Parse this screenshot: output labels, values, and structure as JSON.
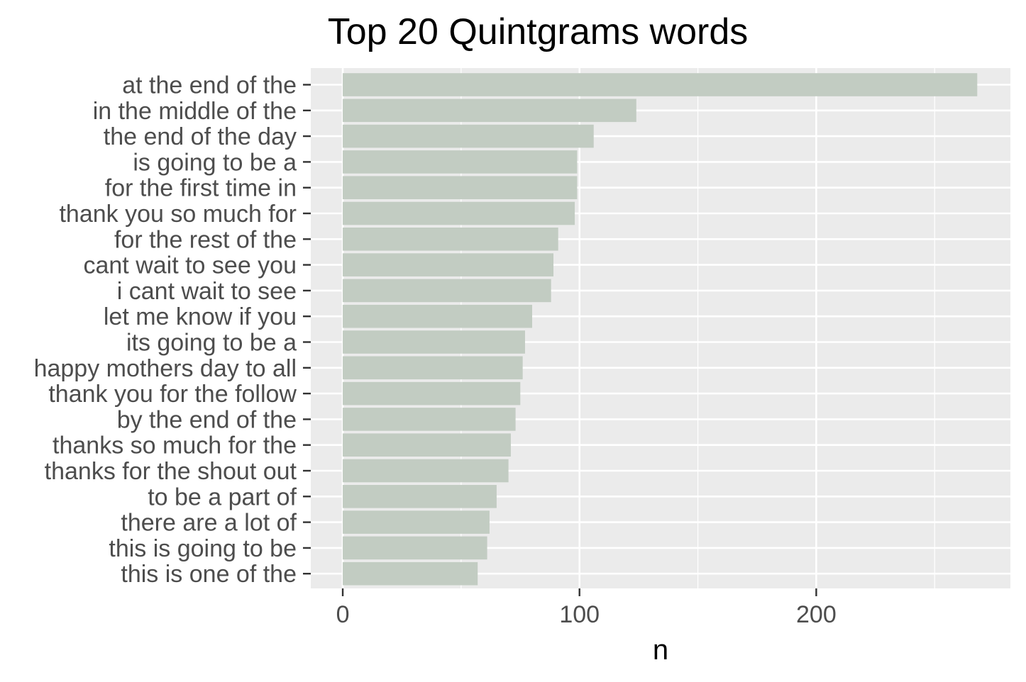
{
  "chart_data": {
    "type": "bar",
    "orientation": "horizontal",
    "title": "Top 20 Quintgrams words",
    "xlabel": "n",
    "ylabel": "",
    "xlim": [
      -13.5,
      282
    ],
    "x_ticks": [
      0,
      100,
      200
    ],
    "x_minor_ticks": [
      50,
      150,
      250
    ],
    "grid": true,
    "legend": "none",
    "categories": [
      "at the end of the",
      "in the middle of the",
      "the end of the day",
      "is going to be a",
      "for the first time in",
      "thank you so much for",
      "for the rest of the",
      "cant wait to see you",
      "i cant wait to see",
      "let me know if you",
      "its going to be a",
      "happy mothers day to all",
      "thank you for the follow",
      "by the end of the",
      "thanks so much for the",
      "thanks for the shout out",
      "to be a part of",
      "there are a lot of",
      "this is going to be",
      "this is one of the"
    ],
    "values": [
      268,
      124,
      106,
      99,
      99,
      98,
      91,
      89,
      88,
      80,
      77,
      76,
      75,
      73,
      71,
      70,
      65,
      62,
      61,
      57
    ],
    "colors": {
      "bar": "#c2ccc2",
      "panel": "#ebebeb",
      "grid": "#ffffff",
      "tick": "#333333",
      "tick_label": "#4d4d4d"
    }
  }
}
